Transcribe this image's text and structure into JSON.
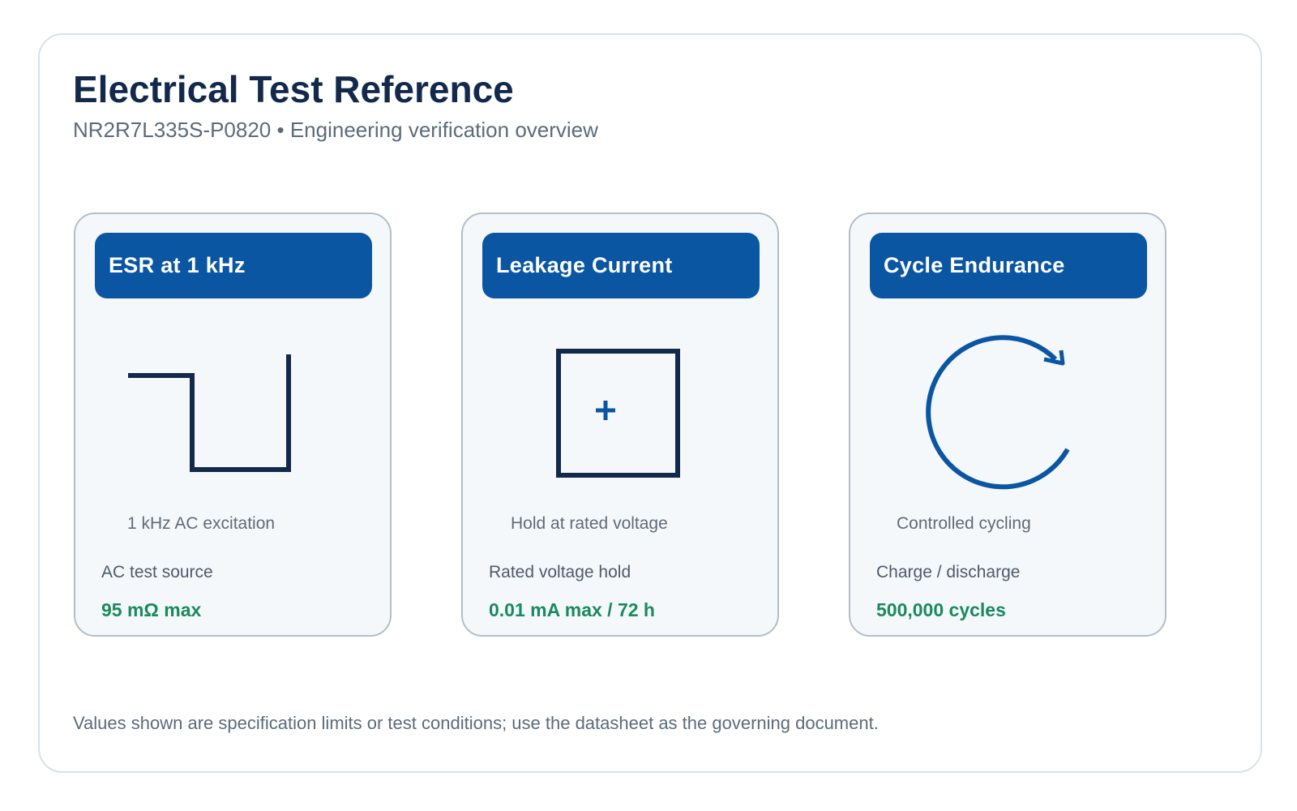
{
  "header": {
    "title": "Electrical Test Reference",
    "subtitle": "NR2R7L335S-P0820 • Engineering verification overview"
  },
  "cards": [
    {
      "title": "ESR at 1 kHz",
      "icon": "square-wave-icon",
      "caption": "1 kHz AC excitation",
      "label": "AC test source",
      "value": "95 mΩ max"
    },
    {
      "title": "Leakage Current",
      "icon": "dc-source-icon",
      "caption": "Hold at rated voltage",
      "label": "Rated voltage hold",
      "value": "0.01 mA max / 72 h"
    },
    {
      "title": "Cycle Endurance",
      "icon": "cycle-arrow-icon",
      "caption": "Controlled cycling",
      "label": "Charge / discharge",
      "value": "500,000 cycles"
    }
  ],
  "footer": {
    "note": "Values shown are specification limits or test conditions; use the datasheet as the governing document."
  },
  "colors": {
    "header_blue": "#0b56a3",
    "title_navy": "#13294b",
    "value_green": "#1a8a5c",
    "card_background": "#f5f8fb"
  }
}
